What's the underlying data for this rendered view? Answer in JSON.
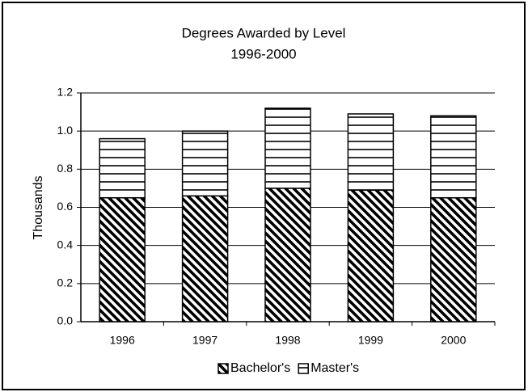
{
  "chart_data": {
    "type": "stacked_bar",
    "title": "Degrees Awarded by Level",
    "subtitle": "1996-2000",
    "y_label": "Thousands",
    "categories": [
      "1996",
      "1997",
      "1998",
      "1999",
      "2000"
    ],
    "series": [
      {
        "name": "Bachelor's",
        "color": "#000000",
        "pattern": "diagonal",
        "values": [
          0.65,
          0.66,
          0.7,
          0.69,
          0.65
        ]
      },
      {
        "name": "Master's",
        "color": "#000000",
        "pattern": "horizontal",
        "values": [
          0.31,
          0.34,
          0.42,
          0.4,
          0.43
        ]
      }
    ],
    "ylim": [
      0,
      1.2
    ],
    "yticks": [
      {
        "value": 0,
        "label": "0.0"
      },
      0.2,
      0.4,
      0.6,
      0.8,
      {
        "value": 1,
        "label": "1.0"
      },
      1.2
    ],
    "grid": true,
    "legend": "bottom"
  }
}
